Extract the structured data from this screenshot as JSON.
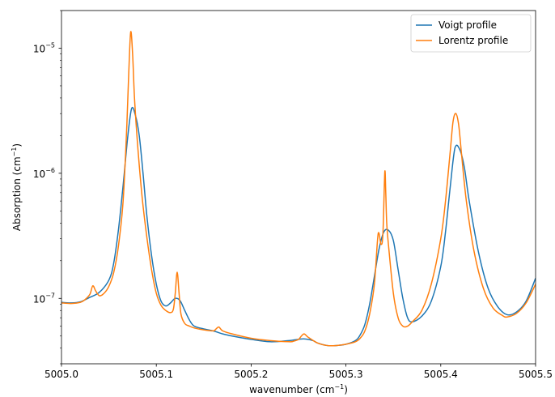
{
  "chart_data": {
    "type": "line",
    "title": "",
    "xlabel": "wavenumber (cm",
    "xlabel_sup": "−1",
    "xlabel_tail": ")",
    "ylabel": "Absorption (cm",
    "ylabel_sup": "−1",
    "ylabel_tail": ")",
    "xlim": [
      5005.0,
      5005.5
    ],
    "ylim": [
      3e-08,
      2e-05
    ],
    "yscale": "log",
    "grid": false,
    "legend_position": "top-right",
    "x_ticks": [
      {
        "value": 5005.0,
        "label": "5005.0"
      },
      {
        "value": 5005.1,
        "label": "5005.1"
      },
      {
        "value": 5005.2,
        "label": "5005.2"
      },
      {
        "value": 5005.3,
        "label": "5005.3"
      },
      {
        "value": 5005.4,
        "label": "5005.4"
      },
      {
        "value": 5005.5,
        "label": "5005.5"
      }
    ],
    "y_ticks": [
      {
        "value": 1e-07,
        "base": "10",
        "exp": "−7"
      },
      {
        "value": 1e-06,
        "base": "10",
        "exp": "−6"
      },
      {
        "value": 1e-05,
        "base": "10",
        "exp": "−5"
      }
    ],
    "series": [
      {
        "name": "Voigt profile",
        "color": "#1f77b4",
        "x": [
          5005.0,
          5005.01,
          5005.02,
          5005.03,
          5005.04,
          5005.05,
          5005.055,
          5005.06,
          5005.065,
          5005.07,
          5005.074,
          5005.078,
          5005.082,
          5005.086,
          5005.09,
          5005.095,
          5005.1,
          5005.105,
          5005.11,
          5005.115,
          5005.12,
          5005.125,
          5005.13,
          5005.135,
          5005.14,
          5005.15,
          5005.16,
          5005.17,
          5005.18,
          5005.2,
          5005.22,
          5005.24,
          5005.255,
          5005.265,
          5005.27,
          5005.28,
          5005.29,
          5005.3,
          5005.31,
          5005.315,
          5005.32,
          5005.325,
          5005.33,
          5005.335,
          5005.34,
          5005.345,
          5005.35,
          5005.355,
          5005.36,
          5005.365,
          5005.37,
          5005.38,
          5005.39,
          5005.4,
          5005.405,
          5005.41,
          5005.415,
          5005.42,
          5005.425,
          5005.43,
          5005.44,
          5005.45,
          5005.46,
          5005.47,
          5005.48,
          5005.49,
          5005.5
        ],
        "values": [
          9.3e-08,
          9.2e-08,
          9.4e-08,
          1.02e-07,
          1.12e-07,
          1.4e-07,
          1.9e-07,
          3.5e-07,
          8e-07,
          2e-06,
          3.3e-06,
          2.9e-06,
          2e-06,
          1e-06,
          4.6e-07,
          2.2e-07,
          1.3e-07,
          9.5e-08,
          8.7e-08,
          9.2e-08,
          1e-07,
          9.6e-08,
          8e-08,
          6.7e-08,
          6e-08,
          5.7e-08,
          5.5e-08,
          5.2e-08,
          5e-08,
          4.7e-08,
          4.5e-08,
          4.6e-08,
          4.75e-08,
          4.6e-08,
          4.4e-08,
          4.2e-08,
          4.2e-08,
          4.3e-08,
          4.6e-08,
          5.1e-08,
          6.2e-08,
          9e-08,
          1.5e-07,
          2.5e-07,
          3.4e-07,
          3.5e-07,
          2.9e-07,
          1.7e-07,
          1e-07,
          7e-08,
          6.5e-08,
          7.2e-08,
          9.5e-08,
          1.8e-07,
          3.4e-07,
          7.8e-07,
          1.6e-06,
          1.55e-06,
          1.1e-06,
          6e-07,
          2.3e-07,
          1.2e-07,
          8.6e-08,
          7.4e-08,
          7.8e-08,
          9.5e-08,
          1.45e-07
        ]
      },
      {
        "name": "Lorentz profile",
        "color": "#ff7f0e",
        "x": [
          5005.0,
          5005.01,
          5005.02,
          5005.025,
          5005.03,
          5005.033,
          5005.036,
          5005.04,
          5005.045,
          5005.05,
          5005.055,
          5005.06,
          5005.065,
          5005.069,
          5005.071,
          5005.073,
          5005.075,
          5005.077,
          5005.08,
          5005.085,
          5005.09,
          5005.095,
          5005.1,
          5005.105,
          5005.11,
          5005.115,
          5005.118,
          5005.12,
          5005.122,
          5005.124,
          5005.126,
          5005.13,
          5005.135,
          5005.14,
          5005.15,
          5005.16,
          5005.163,
          5005.166,
          5005.17,
          5005.18,
          5005.2,
          5005.22,
          5005.24,
          5005.245,
          5005.25,
          5005.253,
          5005.256,
          5005.26,
          5005.27,
          5005.28,
          5005.29,
          5005.3,
          5005.31,
          5005.315,
          5005.32,
          5005.325,
          5005.33,
          5005.334,
          5005.337,
          5005.339,
          5005.341,
          5005.342,
          5005.343,
          5005.345,
          5005.35,
          5005.355,
          5005.36,
          5005.365,
          5005.37,
          5005.38,
          5005.39,
          5005.4,
          5005.405,
          5005.41,
          5005.413,
          5005.416,
          5005.419,
          5005.422,
          5005.427,
          5005.435,
          5005.445,
          5005.455,
          5005.465,
          5005.47,
          5005.48,
          5005.49,
          5005.5
        ],
        "values": [
          9.2e-08,
          9.1e-08,
          9.3e-08,
          9.8e-08,
          1.08e-07,
          1.26e-07,
          1.15e-07,
          1.05e-07,
          1.1e-07,
          1.25e-07,
          1.6e-07,
          2.6e-07,
          6e-07,
          2.5e-06,
          6.5e-06,
          1.35e-05,
          9e-06,
          4e-06,
          1.8e-06,
          6.5e-07,
          3.1e-07,
          1.7e-07,
          1.1e-07,
          8.8e-08,
          8e-08,
          7.7e-08,
          8.2e-08,
          1.1e-07,
          1.62e-07,
          1.1e-07,
          7.5e-08,
          6.3e-08,
          6e-08,
          5.8e-08,
          5.6e-08,
          5.5e-08,
          5.7e-08,
          5.9e-08,
          5.5e-08,
          5.2e-08,
          4.8e-08,
          4.6e-08,
          4.5e-08,
          4.55e-08,
          4.7e-08,
          5e-08,
          5.2e-08,
          4.9e-08,
          4.4e-08,
          4.2e-08,
          4.2e-08,
          4.3e-08,
          4.5e-08,
          4.8e-08,
          5.5e-08,
          7.5e-08,
          1.3e-07,
          3.3e-07,
          2.7e-07,
          3.3e-07,
          1.03e-06,
          7e-07,
          4e-07,
          2.6e-07,
          1.1e-07,
          7e-08,
          6e-08,
          6e-08,
          6.5e-08,
          8e-08,
          1.3e-07,
          3e-07,
          6e-07,
          1.5e-06,
          2.6e-06,
          3e-06,
          2.4e-06,
          1.4e-06,
          6e-07,
          2.4e-07,
          1.2e-07,
          8.4e-08,
          7.3e-08,
          7.1e-08,
          7.6e-08,
          9.2e-08,
          1.3e-07
        ]
      }
    ]
  }
}
